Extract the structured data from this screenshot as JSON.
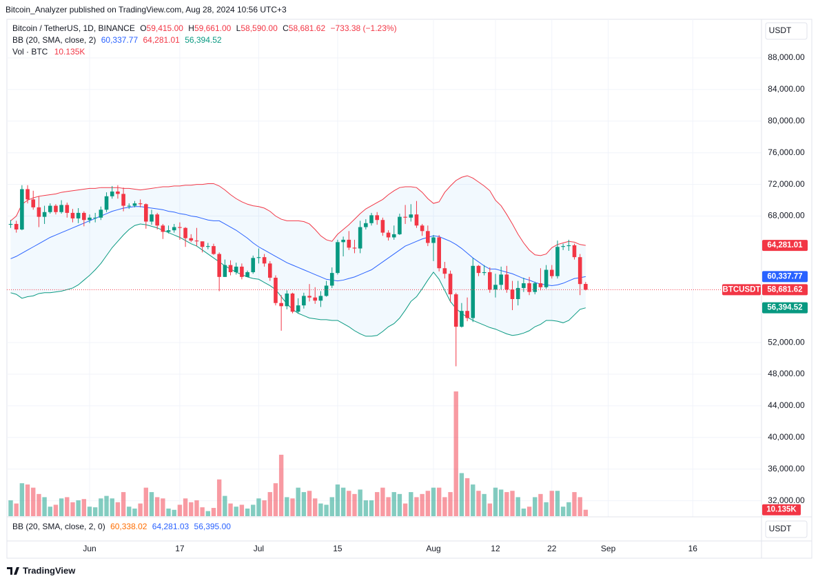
{
  "header": {
    "publisher": "Bitcoin_Analyzer published on TradingView.com, Aug 28, 2024 10:56 UTC+3",
    "symbol": "Bitcoin / TetherUS, 1D, BINANCE",
    "ohlc": [
      {
        "key": "O",
        "value": "59,415.00"
      },
      {
        "key": "H",
        "value": "59,661.00"
      },
      {
        "key": "L",
        "value": "58,590.00"
      },
      {
        "key": "C",
        "value": "58,681.62"
      }
    ],
    "change": "−733.38 (−1.23%)",
    "bb": "BB (20, SMA, close, 2)",
    "bb_values": [
      "60,337.77",
      "64,281.01",
      "56,394.52"
    ],
    "vol": "Vol · BTC",
    "vol_value": "10.135K",
    "currency": "USDT",
    "symbol_tag": "BTCUSDT"
  },
  "lower_pane": {
    "label": "BB (20, SMA, close, 2, 0)",
    "values": [
      "60,338.02",
      "64,281.03",
      "56,395.00"
    ],
    "currency": "USDT"
  },
  "footer": "TradingView",
  "chart_data": {
    "type": "candlestick",
    "up_color": "#089981",
    "down_color": "#f23645",
    "grid": true,
    "ylim": [
      29960,
      92880
    ],
    "yticks": [
      {
        "value": 32000,
        "label": "32,000.00"
      },
      {
        "value": 36000,
        "label": "36,000.00"
      },
      {
        "value": 40000,
        "label": "40,000.00"
      },
      {
        "value": 44000,
        "label": "44,000.00"
      },
      {
        "value": 48000,
        "label": "48,000.00"
      },
      {
        "value": 52000,
        "label": "52,000.00"
      },
      {
        "value": 68000,
        "label": "68,000.00"
      },
      {
        "value": 72000,
        "label": "72,000.00"
      },
      {
        "value": 76000,
        "label": "76,000.00"
      },
      {
        "value": 80000,
        "label": "80,000.00"
      },
      {
        "value": 84000,
        "label": "84,000.00"
      },
      {
        "value": 88000,
        "label": "88,000.00"
      }
    ],
    "categories": [
      null,
      null,
      null,
      null,
      null,
      null,
      null,
      null,
      null,
      null,
      null,
      null,
      null,
      null,
      "Jun",
      null,
      null,
      null,
      null,
      null,
      null,
      null,
      null,
      null,
      null,
      null,
      null,
      null,
      null,
      null,
      "17",
      null,
      null,
      null,
      null,
      null,
      null,
      null,
      null,
      null,
      null,
      null,
      null,
      null,
      "Jul",
      null,
      null,
      null,
      null,
      null,
      null,
      null,
      null,
      null,
      null,
      null,
      null,
      null,
      "15",
      null,
      null,
      null,
      null,
      null,
      null,
      null,
      null,
      null,
      null,
      null,
      null,
      null,
      null,
      null,
      null,
      "Aug",
      null,
      null,
      null,
      null,
      null,
      null,
      null,
      null,
      null,
      null,
      "12",
      null,
      null,
      null,
      null,
      null,
      null,
      null,
      null,
      null,
      "22",
      null,
      null,
      null,
      null,
      null,
      null,
      null,
      null,
      null,
      "Sep",
      null,
      null,
      null,
      null,
      null,
      null,
      null,
      null,
      null,
      null,
      null,
      null,
      null,
      null,
      "16",
      null,
      null,
      null,
      null
    ],
    "open": [
      66900,
      67000,
      66300,
      71400,
      70100,
      69100,
      67900,
      68500,
      69300,
      68500,
      69400,
      68400,
      67700,
      68400,
      67500,
      67800,
      67800,
      68800,
      70500,
      71100,
      70800,
      69300,
      69300,
      69600,
      69500,
      67300,
      68200,
      66800,
      66000,
      66200,
      66600,
      66500,
      65200,
      64900,
      64800,
      64100,
      64200,
      63200,
      60300,
      61800,
      60900,
      61600,
      60300,
      60900,
      62700,
      62800,
      62000,
      60200,
      57000,
      56600,
      58200,
      55900,
      56700,
      57900,
      57700,
      57300,
      57900,
      59200,
      60800,
      64700,
      65000,
      64000,
      63900,
      66600,
      67100,
      68100,
      67500,
      65900,
      65300,
      65700,
      67900,
      67800,
      68200,
      66800,
      66100,
      64600,
      65300,
      61400,
      60700,
      58100,
      54000,
      56000,
      55100,
      61700,
      60800,
      60900,
      58700,
      59300,
      60600,
      58700,
      57500,
      58900,
      59500,
      58400,
      59500,
      59000,
      61200,
      60400,
      64100,
      64200,
      64300,
      62800,
      59415,
      null,
      null,
      null,
      null,
      null,
      null,
      null,
      null,
      null,
      null,
      null,
      null,
      null,
      null,
      null,
      null,
      null,
      null,
      null,
      null,
      null,
      null,
      null
    ],
    "high": [
      67500,
      67400,
      71900,
      71900,
      71200,
      70500,
      69300,
      69600,
      69500,
      70000,
      69700,
      68900,
      69000,
      68600,
      68200,
      68400,
      69200,
      71000,
      71800,
      71900,
      71600,
      69600,
      69900,
      70100,
      69600,
      68800,
      68400,
      67000,
      66800,
      67000,
      67200,
      66600,
      65700,
      66500,
      64800,
      64600,
      64500,
      63400,
      62500,
      62400,
      62100,
      62000,
      61100,
      63000,
      63900,
      63200,
      62300,
      60500,
      58000,
      58600,
      58300,
      57600,
      58300,
      59400,
      59000,
      58500,
      59800,
      61500,
      65000,
      65400,
      66100,
      65000,
      67400,
      67600,
      68400,
      68500,
      67800,
      66200,
      66800,
      68300,
      69400,
      69500,
      69900,
      67000,
      66800,
      65600,
      65600,
      62200,
      61100,
      58300,
      57000,
      57700,
      62700,
      61800,
      61800,
      61500,
      60700,
      61600,
      61700,
      59800,
      59800,
      60200,
      60300,
      59700,
      61400,
      61800,
      61800,
      64900,
      64500,
      65000,
      64500,
      63200,
      59661,
      null,
      null,
      null,
      null,
      null,
      null,
      null,
      null,
      null,
      null,
      null,
      null,
      null,
      null,
      null,
      null,
      null,
      null,
      null,
      null,
      null,
      null,
      null
    ],
    "low": [
      66500,
      65900,
      66200,
      69600,
      68800,
      66600,
      67000,
      68300,
      68200,
      68300,
      67800,
      67200,
      67100,
      66700,
      67100,
      67200,
      67500,
      68500,
      70200,
      70200,
      68600,
      68900,
      69100,
      69100,
      66400,
      66900,
      66300,
      65100,
      65800,
      65900,
      65000,
      64100,
      64700,
      64200,
      63400,
      63800,
      63100,
      58500,
      60300,
      60500,
      60600,
      60000,
      60300,
      60700,
      62000,
      61600,
      59800,
      56700,
      53500,
      56200,
      55700,
      55700,
      56300,
      57200,
      56900,
      56500,
      57800,
      58900,
      60600,
      62900,
      63700,
      63300,
      63300,
      66300,
      66800,
      66900,
      65500,
      64900,
      65000,
      65600,
      67000,
      67300,
      66500,
      65500,
      64200,
      62300,
      61000,
      60100,
      57100,
      49000,
      53900,
      54700,
      54600,
      60400,
      60500,
      58300,
      57700,
      58700,
      58300,
      56100,
      56700,
      58400,
      58000,
      58100,
      58600,
      58800,
      60100,
      60100,
      63700,
      63600,
      62500,
      58000,
      58590,
      null,
      null,
      null,
      null,
      null,
      null,
      null,
      null,
      null,
      null,
      null,
      null,
      null,
      null,
      null,
      null,
      null,
      null,
      null,
      null,
      null,
      null,
      null
    ],
    "close": [
      67000,
      66300,
      71400,
      70100,
      69100,
      67900,
      68500,
      69300,
      68500,
      69400,
      68400,
      67700,
      68400,
      67500,
      67800,
      67800,
      68800,
      70500,
      71100,
      70800,
      69300,
      69300,
      69600,
      69500,
      67300,
      68200,
      66800,
      66000,
      66200,
      66600,
      66500,
      65200,
      64900,
      64800,
      64100,
      64200,
      63200,
      60300,
      61800,
      60900,
      61600,
      60300,
      60900,
      62700,
      62800,
      62000,
      60200,
      57000,
      56600,
      58200,
      55900,
      56700,
      57900,
      57700,
      57300,
      57900,
      59200,
      60800,
      64700,
      65000,
      64000,
      63900,
      66600,
      67100,
      68100,
      67500,
      65900,
      65300,
      65700,
      67900,
      67800,
      68200,
      66800,
      66100,
      64600,
      65300,
      61400,
      60700,
      58100,
      54000,
      56000,
      55100,
      61700,
      60800,
      60900,
      58700,
      59300,
      60600,
      58700,
      57500,
      58900,
      59500,
      58400,
      59500,
      59000,
      61200,
      60400,
      64100,
      64200,
      64300,
      62800,
      59400,
      58681.62,
      null,
      null,
      null,
      null,
      null,
      null,
      null,
      null,
      null,
      null,
      null,
      null,
      null,
      null,
      null,
      null,
      null,
      null,
      null,
      null,
      null,
      null,
      null
    ],
    "volume": {
      "up_color": "rgba(8,153,129,0.5)",
      "down_color": "rgba(242,54,69,0.5)",
      "values": [
        25,
        20,
        52,
        50,
        45,
        35,
        30,
        15,
        18,
        28,
        30,
        22,
        25,
        27,
        15,
        14,
        28,
        32,
        28,
        22,
        38,
        15,
        12,
        20,
        45,
        38,
        30,
        28,
        12,
        10,
        18,
        28,
        22,
        25,
        14,
        8,
        13,
        58,
        32,
        20,
        15,
        18,
        12,
        18,
        28,
        25,
        38,
        52,
        97,
        30,
        28,
        45,
        38,
        40,
        28,
        20,
        18,
        30,
        50,
        45,
        40,
        35,
        42,
        25,
        25,
        38,
        45,
        30,
        38,
        35,
        20,
        38,
        30,
        35,
        40,
        45,
        45,
        30,
        38,
        197,
        68,
        60,
        50,
        40,
        35,
        20,
        45,
        42,
        38,
        40,
        30,
        12,
        15,
        30,
        35,
        22,
        40,
        40,
        15,
        22,
        38,
        30,
        10.135,
        null,
        null,
        null,
        null,
        null,
        null,
        null,
        null,
        null,
        null,
        null,
        null,
        null,
        null,
        null,
        null,
        null,
        null,
        null,
        null,
        null,
        null,
        null
      ]
    },
    "bb_basis": {
      "color": "#2962ff",
      "values": [
        62600,
        62900,
        63300,
        63700,
        64100,
        64500,
        64900,
        65300,
        65600,
        65900,
        66200,
        66500,
        66800,
        67100,
        67400,
        67700,
        68000,
        68300,
        68600,
        68800,
        69000,
        69100,
        69200,
        69200,
        69100,
        69000,
        68900,
        68800,
        68600,
        68500,
        68300,
        68200,
        68000,
        67900,
        67700,
        67500,
        67400,
        67400,
        67000,
        66600,
        66200,
        65700,
        65200,
        64600,
        64100,
        63700,
        63300,
        62900,
        62500,
        62100,
        61800,
        61500,
        61200,
        60900,
        60600,
        60300,
        60000,
        59900,
        59800,
        59900,
        60100,
        60300,
        60600,
        60900,
        61200,
        61700,
        62200,
        62700,
        63200,
        63700,
        64200,
        64500,
        64800,
        65100,
        65300,
        65500,
        65400,
        65100,
        64800,
        64400,
        63900,
        63300,
        62700,
        62200,
        61700,
        61300,
        61300,
        61100,
        60900,
        60700,
        60400,
        60100,
        59900,
        59600,
        59400,
        59300,
        59200,
        59300,
        59500,
        59800,
        60100,
        60200,
        60337.77,
        null,
        null,
        null,
        null,
        null,
        null,
        null,
        null,
        null,
        null,
        null,
        null,
        null,
        null,
        null,
        null,
        null,
        null,
        null,
        null,
        null,
        null,
        null
      ]
    },
    "bb_upper": {
      "color": "#f23645",
      "values": [
        67400,
        68000,
        69500,
        70000,
        70300,
        70500,
        70600,
        70700,
        70800,
        71000,
        71100,
        71200,
        71300,
        71400,
        71500,
        71500,
        71600,
        71600,
        71600,
        71600,
        71500,
        71500,
        71400,
        71300,
        71400,
        71500,
        71600,
        71700,
        71700,
        71800,
        71800,
        71900,
        71900,
        72000,
        72000,
        72100,
        72100,
        71800,
        71300,
        70700,
        70200,
        69800,
        69500,
        69300,
        69200,
        69000,
        68600,
        68000,
        67600,
        67400,
        67400,
        67400,
        67300,
        67000,
        66300,
        65500,
        65000,
        64800,
        65700,
        66300,
        66900,
        67600,
        68300,
        68900,
        69300,
        69700,
        70100,
        70700,
        71200,
        71600,
        71700,
        71700,
        71600,
        71000,
        70200,
        69600,
        69800,
        71000,
        71800,
        72500,
        72900,
        73100,
        72800,
        72300,
        71800,
        71200,
        70000,
        69300,
        68200,
        67000,
        65700,
        64600,
        63700,
        63100,
        63000,
        63200,
        64000,
        64400,
        64600,
        64800,
        64700,
        64400,
        64281.01,
        null,
        null,
        null,
        null,
        null,
        null,
        null,
        null,
        null,
        null,
        null,
        null,
        null,
        null,
        null,
        null,
        null,
        null,
        null,
        null,
        null,
        null,
        null
      ]
    },
    "bb_lower": {
      "color": "#089981",
      "values": [
        58300,
        58100,
        57600,
        57800,
        57900,
        58200,
        58300,
        58300,
        58400,
        58500,
        58700,
        58900,
        59300,
        59900,
        60500,
        61200,
        62000,
        63000,
        64000,
        64800,
        65600,
        66300,
        66800,
        67000,
        66900,
        66700,
        66500,
        66200,
        65900,
        65600,
        65300,
        64900,
        64500,
        64200,
        63700,
        63200,
        62700,
        62200,
        61700,
        61300,
        60900,
        60600,
        60300,
        60100,
        60000,
        59600,
        59200,
        58700,
        57800,
        56900,
        56200,
        55700,
        55400,
        55100,
        55000,
        54900,
        54900,
        54800,
        54800,
        54400,
        54000,
        53500,
        53100,
        52800,
        52800,
        52900,
        53400,
        54000,
        54400,
        55100,
        56100,
        57200,
        57800,
        58800,
        59900,
        60900,
        60000,
        58600,
        57200,
        56300,
        55700,
        55200,
        54800,
        54500,
        54200,
        53900,
        53700,
        53400,
        53100,
        52900,
        53000,
        53200,
        53500,
        54000,
        54300,
        54800,
        54800,
        54700,
        54500,
        54800,
        55500,
        56200,
        56394.52,
        null,
        null,
        null,
        null,
        null,
        null,
        null,
        null,
        null,
        null,
        null,
        null,
        null,
        null,
        null,
        null,
        null,
        null,
        null,
        null,
        null,
        null,
        null
      ]
    },
    "band_fill": "rgba(33,150,243,0.06)"
  }
}
